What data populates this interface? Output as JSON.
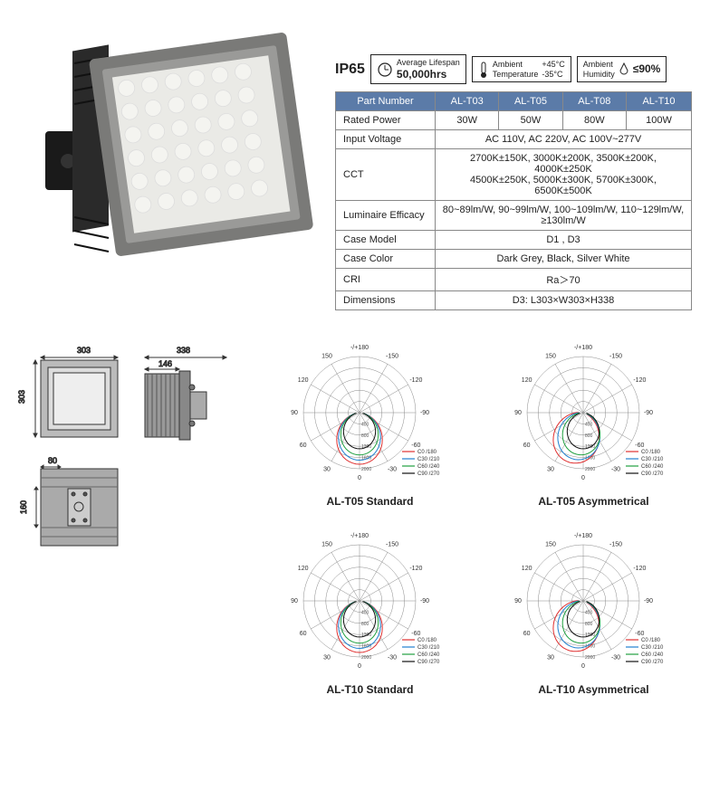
{
  "badges": {
    "ip": "IP65",
    "lifespan_label": "Average Lifespan",
    "lifespan_value": "50,000hrs",
    "temp_label": "Ambient\nTemperature",
    "temp_high": "+45°C",
    "temp_low": "-35°C",
    "humidity_label": "Ambient\nHumidity",
    "humidity_value": "≤90%"
  },
  "table": {
    "headers": [
      "Part Number",
      "AL-T03",
      "AL-T05",
      "AL-T08",
      "AL-T10"
    ],
    "rows": [
      {
        "label": "Rated Power",
        "cells": [
          "30W",
          "50W",
          "80W",
          "100W"
        ]
      },
      {
        "label": "Input Voltage",
        "span": "AC 110V,   AC 220V,   AC 100V~277V"
      },
      {
        "label": "CCT",
        "span": "2700K±150K,  3000K±200K,  3500K±200K,  4000K±250K\n4500K±250K,  5000K±300K,  5700K±300K,  6500K±500K"
      },
      {
        "label": "Luminaire Efficacy",
        "span": "80~89lm/W, 90~99lm/W, 100~109lm/W, 110~129lm/W, ≥130lm/W"
      },
      {
        "label": "Case Model",
        "span": "D1 ,    D3"
      },
      {
        "label": "Case Color",
        "span": "Dark Grey,   Black,   Silver White"
      },
      {
        "label": "CRI",
        "span": "Ra＞70"
      },
      {
        "label": "Dimensions",
        "span": "D3: L303×W303×H338"
      }
    ]
  },
  "dimensions": {
    "front_w": "303",
    "front_h": "303",
    "side_w": "338",
    "side_inset": "146",
    "mount_w": "80",
    "mount_h": "160"
  },
  "polars": [
    {
      "label": "AL-T05 Standard",
      "asym": false
    },
    {
      "label": "AL-T05 Asymmetrical",
      "asym": true
    },
    {
      "label": "AL-T10 Standard",
      "asym": false
    },
    {
      "label": "AL-T10 Asymmetrical",
      "asym": true
    }
  ],
  "polar_style": {
    "angles": [
      "-/+180",
      "-150",
      "150",
      "-120",
      "120",
      "-90",
      "90",
      "-60",
      "60",
      "-30",
      "30",
      "0"
    ],
    "rings": [
      "400",
      "800",
      "1200",
      "1600",
      "2000"
    ],
    "legend": [
      {
        "color": "#e03030",
        "label": "C0  /180"
      },
      {
        "color": "#2080d0",
        "label": "C30 /210"
      },
      {
        "color": "#20a040",
        "label": "C60 /240"
      },
      {
        "color": "#111111",
        "label": "C90 /270"
      }
    ],
    "grid_color": "#888888",
    "bg": "#ffffff"
  },
  "product_colors": {
    "body": "#8a8a88",
    "face": "#e8e8e6",
    "led": "#f5f5f0",
    "bracket": "#1a1a1a",
    "fins": "#2a2a2a"
  },
  "dim_colors": {
    "stroke": "#333333",
    "fill": "#bbbbbb",
    "mount": "#999999"
  }
}
